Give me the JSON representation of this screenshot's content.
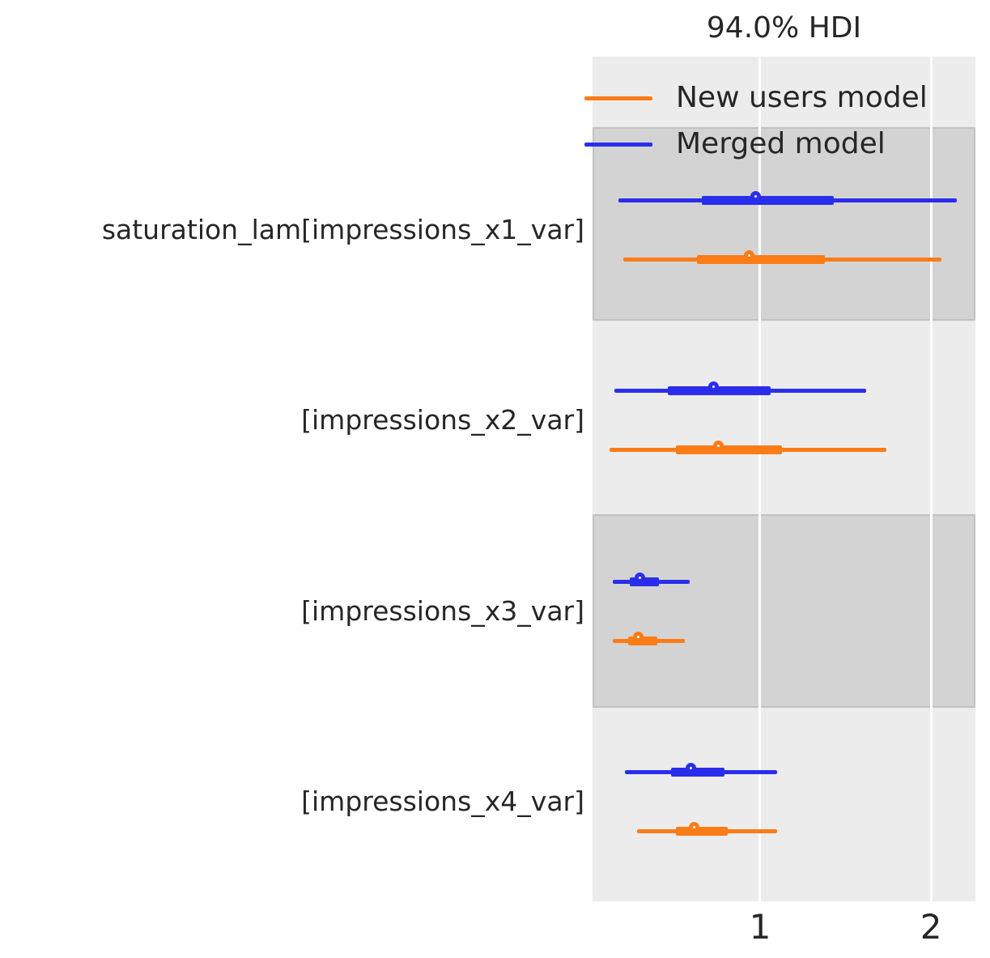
{
  "title": "94.0% HDI",
  "colors": {
    "background": "#ffffff",
    "band_light": "#ececec",
    "band_dark": "#d3d3d3",
    "band_dark_border": "#c2c2c2",
    "grid": "#ffffff",
    "text": "#262626",
    "orange": "#fa7c17",
    "blue": "#2a2eec"
  },
  "chart_data": {
    "type": "forest",
    "title": "94.0% HDI",
    "hdi_prob": 0.94,
    "xlabel": "",
    "xlim": [
      0.02,
      2.26
    ],
    "xticks": [
      1,
      2
    ],
    "grid": "vertical-white-gridlines",
    "legend_position": "top-inside",
    "legend": [
      {
        "name": "New users model",
        "color": "#fa7c17"
      },
      {
        "name": "Merged model",
        "color": "#2a2eec"
      }
    ],
    "rows": [
      {
        "label": "saturation_lam[impressions_x1_var]",
        "estimates": [
          {
            "model": "Merged model",
            "color": "#2a2eec",
            "hdi_94": [
              0.17,
              2.15
            ],
            "thick_interval": [
              0.66,
              1.43
            ],
            "point": 1.0
          },
          {
            "model": "New users model",
            "color": "#fa7c17",
            "hdi_94": [
              0.2,
              2.06
            ],
            "thick_interval": [
              0.63,
              1.38
            ],
            "point": 0.96
          }
        ]
      },
      {
        "label": "[impressions_x2_var]",
        "estimates": [
          {
            "model": "Merged model",
            "color": "#2a2eec",
            "hdi_94": [
              0.15,
              1.62
            ],
            "thick_interval": [
              0.46,
              1.06
            ],
            "point": 0.75
          },
          {
            "model": "New users model",
            "color": "#fa7c17",
            "hdi_94": [
              0.12,
              1.74
            ],
            "thick_interval": [
              0.51,
              1.13
            ],
            "point": 0.78
          }
        ]
      },
      {
        "label": "[impressions_x3_var]",
        "estimates": [
          {
            "model": "Merged model",
            "color": "#2a2eec",
            "hdi_94": [
              0.14,
              0.59
            ],
            "thick_interval": [
              0.24,
              0.41
            ],
            "point": 0.32
          },
          {
            "model": "New users model",
            "color": "#fa7c17",
            "hdi_94": [
              0.14,
              0.56
            ],
            "thick_interval": [
              0.23,
              0.4
            ],
            "point": 0.31
          }
        ]
      },
      {
        "label": "[impressions_x4_var]",
        "estimates": [
          {
            "model": "Merged model",
            "color": "#2a2eec",
            "hdi_94": [
              0.21,
              1.1
            ],
            "thick_interval": [
              0.48,
              0.79
            ],
            "point": 0.62
          },
          {
            "model": "New users model",
            "color": "#fa7c17",
            "hdi_94": [
              0.28,
              1.1
            ],
            "thick_interval": [
              0.51,
              0.81
            ],
            "point": 0.64
          }
        ]
      }
    ]
  }
}
